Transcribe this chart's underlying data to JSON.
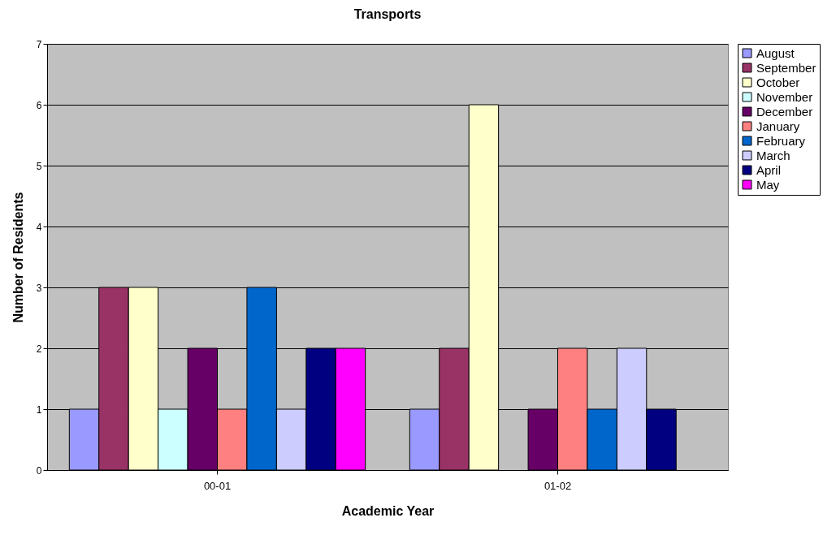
{
  "chart_data": {
    "type": "bar",
    "title": "Transports",
    "xlabel": "Academic Year",
    "ylabel": "Number of Residents",
    "categories": [
      "00-01",
      "01-02"
    ],
    "series": [
      {
        "name": "August",
        "color": "#9999ff",
        "values": [
          1,
          1
        ]
      },
      {
        "name": "September",
        "color": "#993366",
        "values": [
          3,
          2
        ]
      },
      {
        "name": "October",
        "color": "#ffffcc",
        "values": [
          3,
          6
        ]
      },
      {
        "name": "November",
        "color": "#ccffff",
        "values": [
          1,
          null
        ]
      },
      {
        "name": "December",
        "color": "#660066",
        "values": [
          2,
          1
        ]
      },
      {
        "name": "January",
        "color": "#ff8080",
        "values": [
          1,
          2
        ]
      },
      {
        "name": "February",
        "color": "#0066cc",
        "values": [
          3,
          1
        ]
      },
      {
        "name": "March",
        "color": "#ccccff",
        "values": [
          1,
          2
        ]
      },
      {
        "name": "April",
        "color": "#000080",
        "values": [
          2,
          1
        ]
      },
      {
        "name": "May",
        "color": "#ff00ff",
        "values": [
          2,
          null
        ]
      }
    ],
    "ylim": [
      0,
      7
    ],
    "yticks": [
      0,
      1,
      2,
      3,
      4,
      5,
      6,
      7
    ],
    "grid": "y",
    "legend": "right"
  }
}
